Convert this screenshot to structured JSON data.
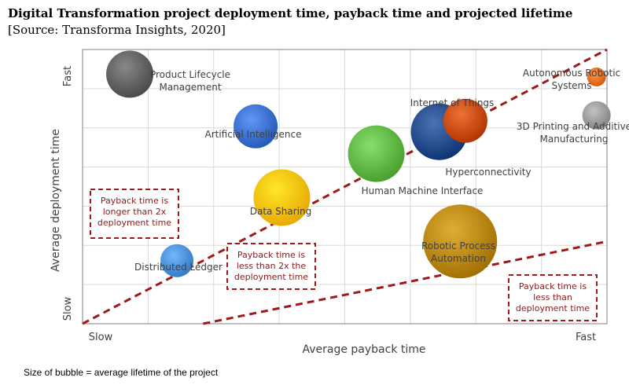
{
  "title": "Digital Transformation project deployment time, payback time and projected lifetime",
  "subtitle": "[Source: Transforma Insights, 2020]",
  "footnote": "Size of bubble = average lifetime of the project",
  "chart_data": {
    "type": "bubble",
    "xlabel": "Average payback time",
    "ylabel": "Average deployment time",
    "x_ticks": [
      "Slow",
      "Fast"
    ],
    "y_ticks": [
      "Slow",
      "Fast"
    ],
    "xlim": [
      0,
      100
    ],
    "ylim": [
      0,
      100
    ],
    "grid": true,
    "series": [
      {
        "name": "Product Lifecycle Management",
        "x": 9,
        "y": 91,
        "size": 30,
        "color": "#606060"
      },
      {
        "name": "Artificial Intelligence",
        "x": 33,
        "y": 72,
        "size": 28,
        "color": "#3a6fcf"
      },
      {
        "name": "Internet of Things",
        "x": 73,
        "y": 74,
        "size": 28,
        "color": "#c84a0c"
      },
      {
        "name": "Hyperconnectivity",
        "x": 68,
        "y": 70,
        "size": 36,
        "color": "#234a8a"
      },
      {
        "name": "Human Machine Interface",
        "x": 56,
        "y": 62,
        "size": 36,
        "color": "#5fb643"
      },
      {
        "name": "Autonomous Robotic Systems",
        "x": 98,
        "y": 90,
        "size": 12,
        "color": "#ee6e20"
      },
      {
        "name": "3D Printing and Additive Manufacturing",
        "x": 98,
        "y": 76,
        "size": 18,
        "color": "#9a9a9a"
      },
      {
        "name": "Data Sharing",
        "x": 38,
        "y": 46,
        "size": 36,
        "color": "#ffbf00"
      },
      {
        "name": "Robotic Process Automation",
        "x": 72,
        "y": 30,
        "size": 47,
        "color": "#b8860b"
      },
      {
        "name": "Distributed Ledger",
        "x": 18,
        "y": 23,
        "size": 21,
        "color": "#4a90d9"
      }
    ],
    "trend_lines": [
      {
        "from": [
          0,
          0
        ],
        "to": [
          100,
          100
        ],
        "color": "#a01818",
        "style": "dashed"
      },
      {
        "from": [
          23,
          0
        ],
        "to": [
          100,
          30
        ],
        "color": "#a01818",
        "style": "dashed"
      }
    ],
    "annotations": [
      {
        "text": [
          "Payback time is",
          "longer than 2x",
          "deployment time"
        ]
      },
      {
        "text": [
          "Payback time is",
          "less than 2x the",
          "deployment time"
        ]
      },
      {
        "text": [
          "Payback time is",
          "less than",
          "deployment time"
        ]
      }
    ]
  },
  "colors": {
    "border": "#7f7f7f",
    "grid": "#d9d9d9",
    "dash": "#a01818",
    "annotation_text": "#8b1a1a"
  }
}
